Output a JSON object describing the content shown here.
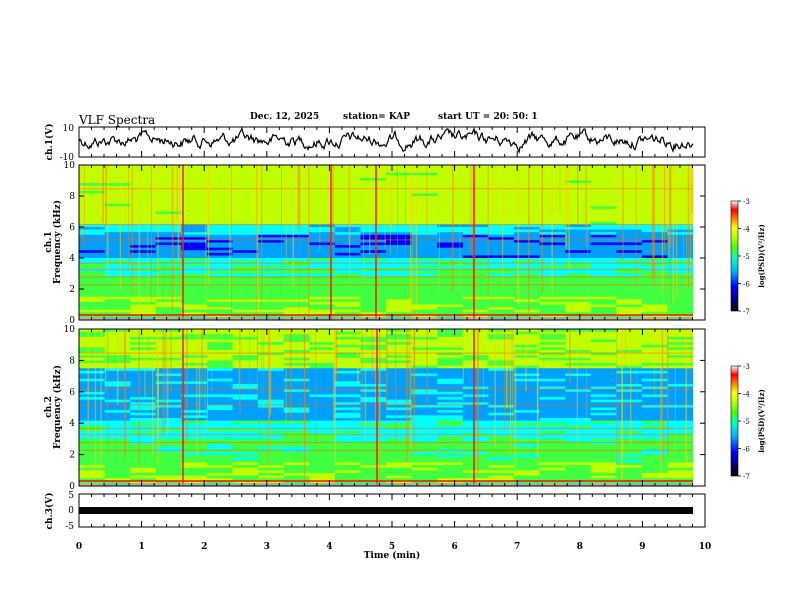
{
  "header": {
    "title": "VLF Spectra",
    "date": "Dec. 12, 2025",
    "station": "station= KAP",
    "start_ut": "start  UT =   20: 50: 1"
  },
  "chart_data": [
    {
      "type": "line",
      "panel": "ch1-waveform",
      "ylabel": "ch.1(V)",
      "ylim": [
        -10,
        10
      ],
      "yticks": [
        "10",
        "-10"
      ],
      "xlim": [
        0,
        10
      ],
      "description_values": "noisy amplitude trace oscillating around 0 V, roughly -8 to +6 V"
    },
    {
      "type": "heatmap",
      "panel": "ch1-spectrogram",
      "ylabel": "Frequency (kHz)",
      "channel_label": "ch.1",
      "ylim": [
        0,
        10
      ],
      "yticks": [
        "0",
        "2",
        "4",
        "6",
        "8",
        "10"
      ],
      "xlim": [
        0,
        10
      ],
      "colorbar": {
        "label": "log(PSD)(V²/Hz)",
        "range": [
          -7,
          -3
        ],
        "ticks": [
          "-3",
          "-4",
          "-5",
          "-6",
          "-7"
        ]
      }
    },
    {
      "type": "heatmap",
      "panel": "ch2-spectrogram",
      "ylabel": "Frequency (kHz)",
      "channel_label": "ch.2",
      "ylim": [
        0,
        10
      ],
      "yticks": [
        "0",
        "2",
        "4",
        "6",
        "8",
        "10"
      ],
      "xlim": [
        0,
        10
      ],
      "colorbar": {
        "label": "log(PSD)(V²/Hz)",
        "range": [
          -7,
          -3
        ],
        "ticks": [
          "-3",
          "-4",
          "-5",
          "-6",
          "-7"
        ]
      }
    },
    {
      "type": "line",
      "panel": "ch3-waveform",
      "ylabel": "ch.3(V)",
      "ylim": [
        -5,
        5
      ],
      "yticks": [
        "5",
        "0",
        "-5"
      ],
      "xlim": [
        0,
        10
      ],
      "description_values": "flat saturated band near -1 V"
    }
  ],
  "xaxis": {
    "label": "Time  (min)",
    "ticks": [
      "0",
      "1",
      "2",
      "3",
      "4",
      "5",
      "6",
      "7",
      "8",
      "9",
      "10"
    ]
  },
  "colors": {
    "colormap": [
      "#000080",
      "#0000ff",
      "#00a0ff",
      "#00ffff",
      "#40ff40",
      "#c0ff00",
      "#ffff00",
      "#ff8000",
      "#ff0000",
      "#ffffff"
    ]
  }
}
